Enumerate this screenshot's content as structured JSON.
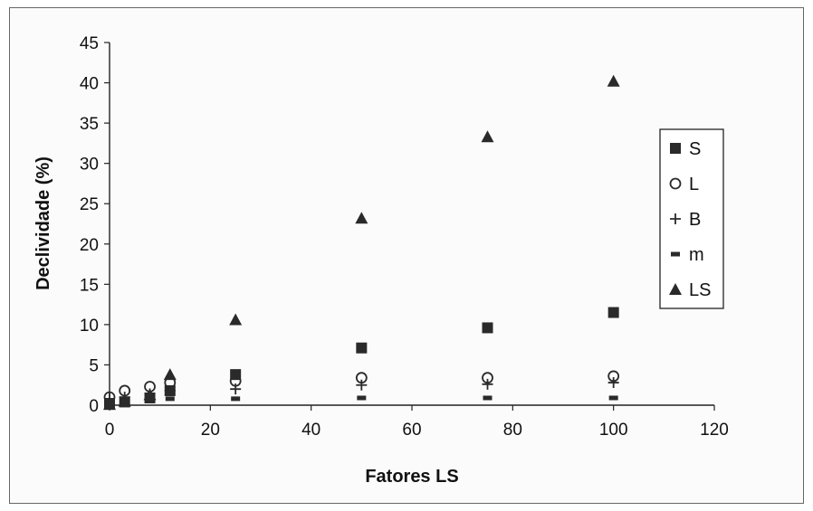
{
  "chart_data": {
    "type": "scatter",
    "title": "",
    "xlabel": "Fatores LS",
    "ylabel": "Declividade (%)",
    "xlim": [
      0,
      120
    ],
    "ylim": [
      0,
      45
    ],
    "xticks": [
      0,
      20,
      40,
      60,
      80,
      100,
      120
    ],
    "yticks": [
      0,
      5,
      10,
      15,
      20,
      25,
      30,
      35,
      40,
      45
    ],
    "grid": false,
    "legend_position": "right",
    "series": [
      {
        "name": "S",
        "marker": "square",
        "color": "#2a2a2a",
        "points": [
          [
            0,
            0.1
          ],
          [
            3,
            0.4
          ],
          [
            8,
            0.9
          ],
          [
            12,
            1.8
          ],
          [
            25,
            3.8
          ],
          [
            50,
            7.1
          ],
          [
            75,
            9.6
          ],
          [
            100,
            11.5
          ]
        ]
      },
      {
        "name": "L",
        "marker": "circle-open",
        "color": "#2a2a2a",
        "points": [
          [
            0,
            1.0
          ],
          [
            3,
            1.8
          ],
          [
            8,
            2.3
          ],
          [
            12,
            2.8
          ],
          [
            25,
            3.0
          ],
          [
            50,
            3.4
          ],
          [
            75,
            3.4
          ],
          [
            100,
            3.6
          ]
        ]
      },
      {
        "name": "B",
        "marker": "plus",
        "color": "#2a2a2a",
        "points": [
          [
            0,
            0.8
          ],
          [
            3,
            1.0
          ],
          [
            8,
            1.4
          ],
          [
            12,
            1.8
          ],
          [
            25,
            2.0
          ],
          [
            50,
            2.5
          ],
          [
            75,
            2.6
          ],
          [
            100,
            2.8
          ]
        ]
      },
      {
        "name": "m",
        "marker": "dash",
        "color": "#2a2a2a",
        "points": [
          [
            0,
            0.2
          ],
          [
            3,
            0.4
          ],
          [
            8,
            0.6
          ],
          [
            12,
            0.8
          ],
          [
            25,
            0.8
          ],
          [
            50,
            0.9
          ],
          [
            75,
            0.9
          ],
          [
            100,
            0.9
          ]
        ]
      },
      {
        "name": "LS",
        "marker": "triangle",
        "color": "#2a2a2a",
        "points": [
          [
            0,
            0.1
          ],
          [
            3,
            0.5
          ],
          [
            8,
            1.3
          ],
          [
            12,
            3.8
          ],
          [
            25,
            10.6
          ],
          [
            50,
            23.2
          ],
          [
            75,
            33.3
          ],
          [
            100,
            40.2
          ]
        ]
      }
    ]
  }
}
